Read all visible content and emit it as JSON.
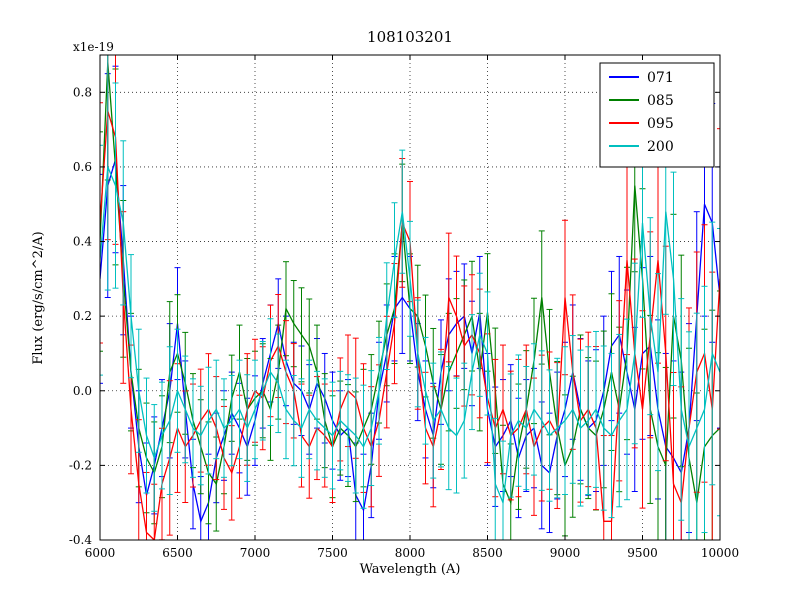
{
  "chart_data": {
    "type": "line",
    "title": "108103201",
    "xlabel": "Wavelength (A)",
    "ylabel": "Flux (erg/s/cm^2/A)",
    "y_offset_label": "x1e-19",
    "xlim": [
      6000,
      10000
    ],
    "ylim": [
      -0.4,
      0.9
    ],
    "grid": true,
    "grid_style": "dotted",
    "legend_position": "upper right",
    "error_bars": true,
    "xticks": [
      6000,
      6500,
      7000,
      7500,
      8000,
      8500,
      9000,
      9500,
      10000
    ],
    "xtick_labels": [
      "6000",
      "6500",
      "7000",
      "7500",
      "8000",
      "8500",
      "9000",
      "9500",
      "10000"
    ],
    "yticks": [
      -0.4,
      -0.2,
      0.0,
      0.2,
      0.4,
      0.6,
      0.8
    ],
    "ytick_labels": [
      "-0.4",
      "-0.2",
      "0.0",
      "0.2",
      "0.4",
      "0.6",
      "0.8"
    ],
    "x": [
      6000,
      6050,
      6100,
      6150,
      6200,
      6250,
      6300,
      6350,
      6400,
      6450,
      6500,
      6550,
      6600,
      6650,
      6700,
      6750,
      6800,
      6850,
      6900,
      6950,
      7000,
      7050,
      7100,
      7150,
      7200,
      7250,
      7300,
      7350,
      7400,
      7450,
      7500,
      7550,
      7600,
      7650,
      7700,
      7750,
      7800,
      7850,
      7900,
      7950,
      8000,
      8050,
      8100,
      8150,
      8200,
      8250,
      8300,
      8350,
      8400,
      8450,
      8500,
      8550,
      8600,
      8650,
      8700,
      8750,
      8800,
      8850,
      8900,
      8950,
      9000,
      9050,
      9100,
      9150,
      9200,
      9250,
      9300,
      9350,
      9400,
      9450,
      9500,
      9550,
      9600,
      9650,
      9700,
      9750,
      9800,
      9850,
      9900,
      9950,
      10000
    ],
    "errors": [
      0.28,
      0.3,
      0.25,
      0.2,
      0.15,
      0.15,
      0.14,
      0.13,
      0.13,
      0.18,
      0.15,
      0.13,
      0.12,
      0.12,
      0.13,
      0.12,
      0.12,
      0.11,
      0.12,
      0.13,
      0.12,
      0.12,
      0.13,
      0.12,
      0.12,
      0.11,
      0.12,
      0.12,
      0.12,
      0.12,
      0.13,
      0.12,
      0.13,
      0.14,
      0.15,
      0.14,
      0.13,
      0.13,
      0.14,
      0.15,
      0.14,
      0.13,
      0.13,
      0.14,
      0.14,
      0.15,
      0.14,
      0.14,
      0.14,
      0.15,
      0.15,
      0.16,
      0.15,
      0.15,
      0.16,
      0.15,
      0.16,
      0.17,
      0.16,
      0.17,
      0.18,
      0.18,
      0.19,
      0.18,
      0.19,
      0.2,
      0.2,
      0.21,
      0.22,
      0.22,
      0.23,
      0.24,
      0.24,
      0.25,
      0.26,
      0.27,
      0.28,
      0.28,
      0.3,
      0.32,
      0.35
    ],
    "series": [
      {
        "name": "071",
        "color": "#0000ff",
        "error_scale": 1.0,
        "values": [
          0.3,
          0.55,
          0.62,
          0.35,
          0.05,
          -0.15,
          -0.28,
          -0.2,
          -0.1,
          0.0,
          0.18,
          -0.05,
          -0.25,
          -0.35,
          -0.3,
          -0.18,
          -0.12,
          -0.06,
          -0.1,
          -0.15,
          -0.08,
          0.02,
          0.1,
          0.18,
          0.08,
          0.02,
          0.0,
          -0.05,
          0.02,
          -0.02,
          -0.08,
          -0.12,
          -0.1,
          -0.28,
          -0.32,
          -0.2,
          0.0,
          0.1,
          0.22,
          0.25,
          0.22,
          0.05,
          -0.05,
          -0.12,
          0.05,
          0.15,
          0.18,
          0.2,
          0.1,
          0.21,
          -0.05,
          -0.15,
          -0.12,
          -0.08,
          -0.18,
          -0.12,
          -0.1,
          -0.2,
          -0.22,
          -0.12,
          -0.05,
          0.05,
          -0.05,
          -0.1,
          -0.08,
          0.0,
          0.12,
          0.15,
          0.05,
          -0.05,
          0.1,
          0.12,
          -0.05,
          -0.15,
          -0.18,
          -0.22,
          -0.1,
          0.2,
          0.5,
          0.45,
          0.25
        ]
      },
      {
        "name": "085",
        "color": "#008000",
        "error_scale": 1.05,
        "values": [
          0.4,
          0.88,
          0.6,
          0.3,
          0.05,
          -0.1,
          -0.18,
          -0.22,
          -0.15,
          0.05,
          0.1,
          0.02,
          -0.08,
          -0.15,
          -0.22,
          -0.25,
          -0.15,
          -0.02,
          0.05,
          -0.05,
          -0.02,
          0.0,
          -0.05,
          0.05,
          0.22,
          0.18,
          0.15,
          0.12,
          0.05,
          -0.08,
          -0.15,
          -0.1,
          -0.12,
          -0.15,
          -0.1,
          -0.05,
          0.05,
          0.15,
          0.22,
          0.45,
          0.22,
          0.2,
          0.12,
          0.02,
          -0.05,
          0.05,
          0.1,
          0.15,
          0.2,
          0.05,
          0.21,
          0.0,
          -0.25,
          -0.3,
          -0.15,
          -0.05,
          0.08,
          0.25,
          0.05,
          -0.1,
          -0.2,
          -0.15,
          -0.05,
          -0.1,
          -0.12,
          -0.05,
          0.05,
          -0.05,
          0.1,
          0.55,
          0.3,
          -0.05,
          -0.15,
          -0.2,
          0.2,
          0.08,
          -0.18,
          -0.3,
          -0.15,
          -0.12,
          -0.1
        ]
      },
      {
        "name": "095",
        "color": "#ff0000",
        "error_scale": 1.15,
        "values": [
          0.45,
          0.75,
          0.68,
          0.25,
          -0.05,
          -0.25,
          -0.38,
          -0.4,
          -0.25,
          -0.18,
          -0.1,
          -0.15,
          -0.12,
          -0.08,
          -0.05,
          -0.1,
          -0.18,
          -0.22,
          -0.15,
          -0.05,
          0.0,
          -0.02,
          0.08,
          0.12,
          0.05,
          0.0,
          -0.12,
          -0.15,
          -0.1,
          -0.12,
          -0.15,
          -0.05,
          0.0,
          -0.02,
          -0.1,
          -0.15,
          -0.08,
          0.05,
          0.18,
          0.45,
          0.4,
          0.1,
          -0.1,
          -0.15,
          -0.05,
          0.25,
          0.2,
          0.12,
          0.15,
          0.1,
          -0.02,
          -0.1,
          -0.05,
          -0.12,
          -0.1,
          -0.05,
          -0.15,
          -0.1,
          -0.08,
          -0.12,
          0.25,
          0.05,
          -0.08,
          -0.05,
          -0.1,
          -0.35,
          -0.35,
          0.0,
          0.35,
          0.1,
          -0.05,
          0.15,
          0.35,
          0.1,
          -0.25,
          -0.3,
          -0.1,
          0.05,
          0.1,
          -0.05,
          0.3
        ]
      },
      {
        "name": "200",
        "color": "#00bfbf",
        "error_scale": 1.1,
        "values": [
          0.35,
          0.6,
          0.55,
          0.45,
          0.2,
          0.0,
          -0.12,
          -0.18,
          -0.12,
          -0.08,
          0.0,
          -0.05,
          -0.1,
          -0.12,
          -0.08,
          -0.05,
          -0.1,
          -0.08,
          -0.05,
          -0.1,
          -0.05,
          0.0,
          0.05,
          0.02,
          -0.05,
          -0.08,
          -0.1,
          -0.05,
          -0.08,
          -0.1,
          -0.12,
          -0.08,
          -0.1,
          -0.12,
          -0.15,
          -0.1,
          0.0,
          0.2,
          0.35,
          0.48,
          0.3,
          0.1,
          0.0,
          -0.08,
          -0.05,
          -0.1,
          -0.12,
          -0.08,
          0.05,
          0.15,
          0.1,
          -0.25,
          -0.3,
          -0.12,
          -0.08,
          -0.1,
          -0.05,
          -0.08,
          -0.12,
          -0.1,
          -0.08,
          -0.05,
          -0.1,
          -0.08,
          -0.05,
          -0.1,
          -0.12,
          -0.08,
          -0.05,
          0.1,
          0.45,
          0.2,
          0.05,
          0.48,
          0.3,
          -0.05,
          -0.15,
          -0.1,
          -0.05,
          0.1,
          0.05
        ]
      }
    ]
  }
}
